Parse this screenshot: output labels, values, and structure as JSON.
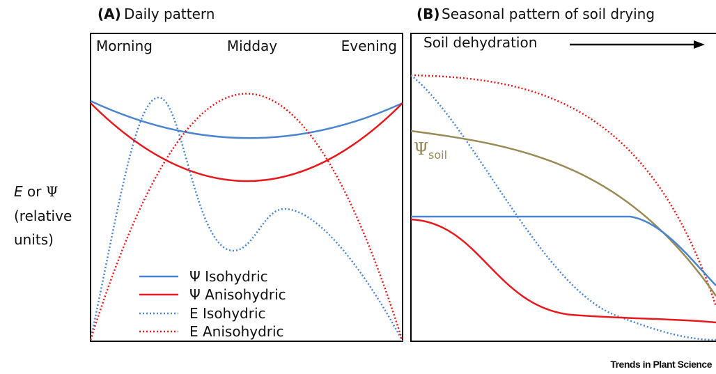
{
  "panels": [
    {
      "letter": "(A)",
      "title": "Daily pattern",
      "time_labels": [
        "Morning",
        "Midday",
        "Evening"
      ]
    },
    {
      "letter": "(B)",
      "title": "Seasonal pattern of soil drying",
      "arrow_label": "Soil dehydration",
      "soil_curve_label": {
        "symbol": "Ψ",
        "subscript": "soil"
      }
    }
  ],
  "y_label": {
    "variable_e": "E",
    "connector": "or",
    "variable_psi": "Ψ",
    "lines": [
      "(relative",
      "units)"
    ]
  },
  "legend": [
    "Ψ Isohydric",
    "Ψ Anisohydric",
    "E Isohydric",
    "E Anisohydric"
  ],
  "footer": "Trends in Plant Science"
}
